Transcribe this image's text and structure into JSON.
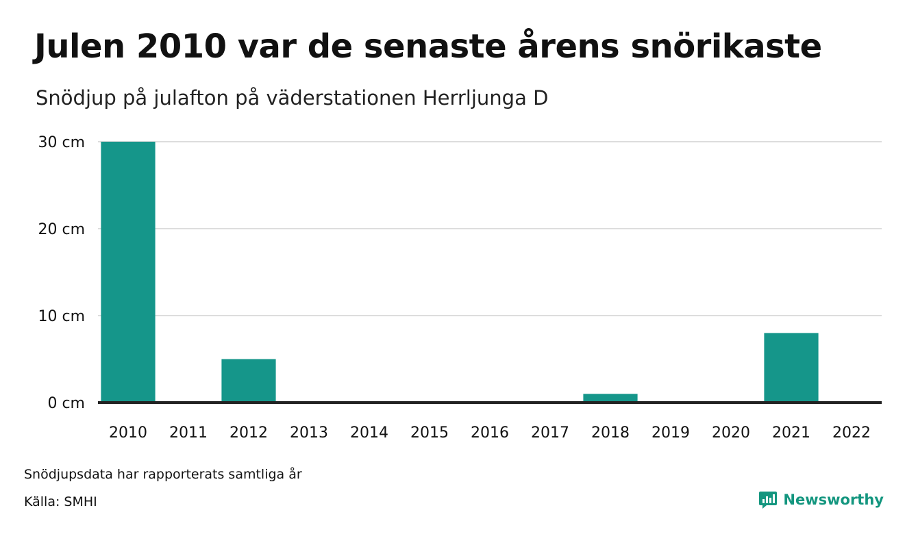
{
  "header": {
    "title": "Julen 2010 var de senaste årens snörikaste",
    "subtitle": "Snödjup på julafton på väderstationen Herrljunga D"
  },
  "footer": {
    "note": "Snödjupsdata har rapporterats samtliga år",
    "source": "Källa: SMHI",
    "brand": "Newsworthy"
  },
  "colors": {
    "bar": "#15968a",
    "grid": "#dddddd",
    "baseline": "#222222",
    "brand": "#14967f"
  },
  "chart_data": {
    "type": "bar",
    "title": "Julen 2010 var de senaste årens snörikaste",
    "subtitle": "Snödjup på julafton på väderstationen Herrljunga D",
    "categories": [
      "2010",
      "2011",
      "2012",
      "2013",
      "2014",
      "2015",
      "2016",
      "2017",
      "2018",
      "2019",
      "2020",
      "2021",
      "2022"
    ],
    "values": [
      30,
      0,
      5,
      0,
      0,
      0,
      0,
      0,
      1,
      0,
      0,
      8,
      0
    ],
    "unit": "cm",
    "yticks": [
      0,
      10,
      20,
      30
    ],
    "ytick_labels": [
      "0 cm",
      "10 cm",
      "20 cm",
      "30 cm"
    ],
    "ylim": [
      0,
      30
    ],
    "grid": true,
    "legend": "none"
  }
}
